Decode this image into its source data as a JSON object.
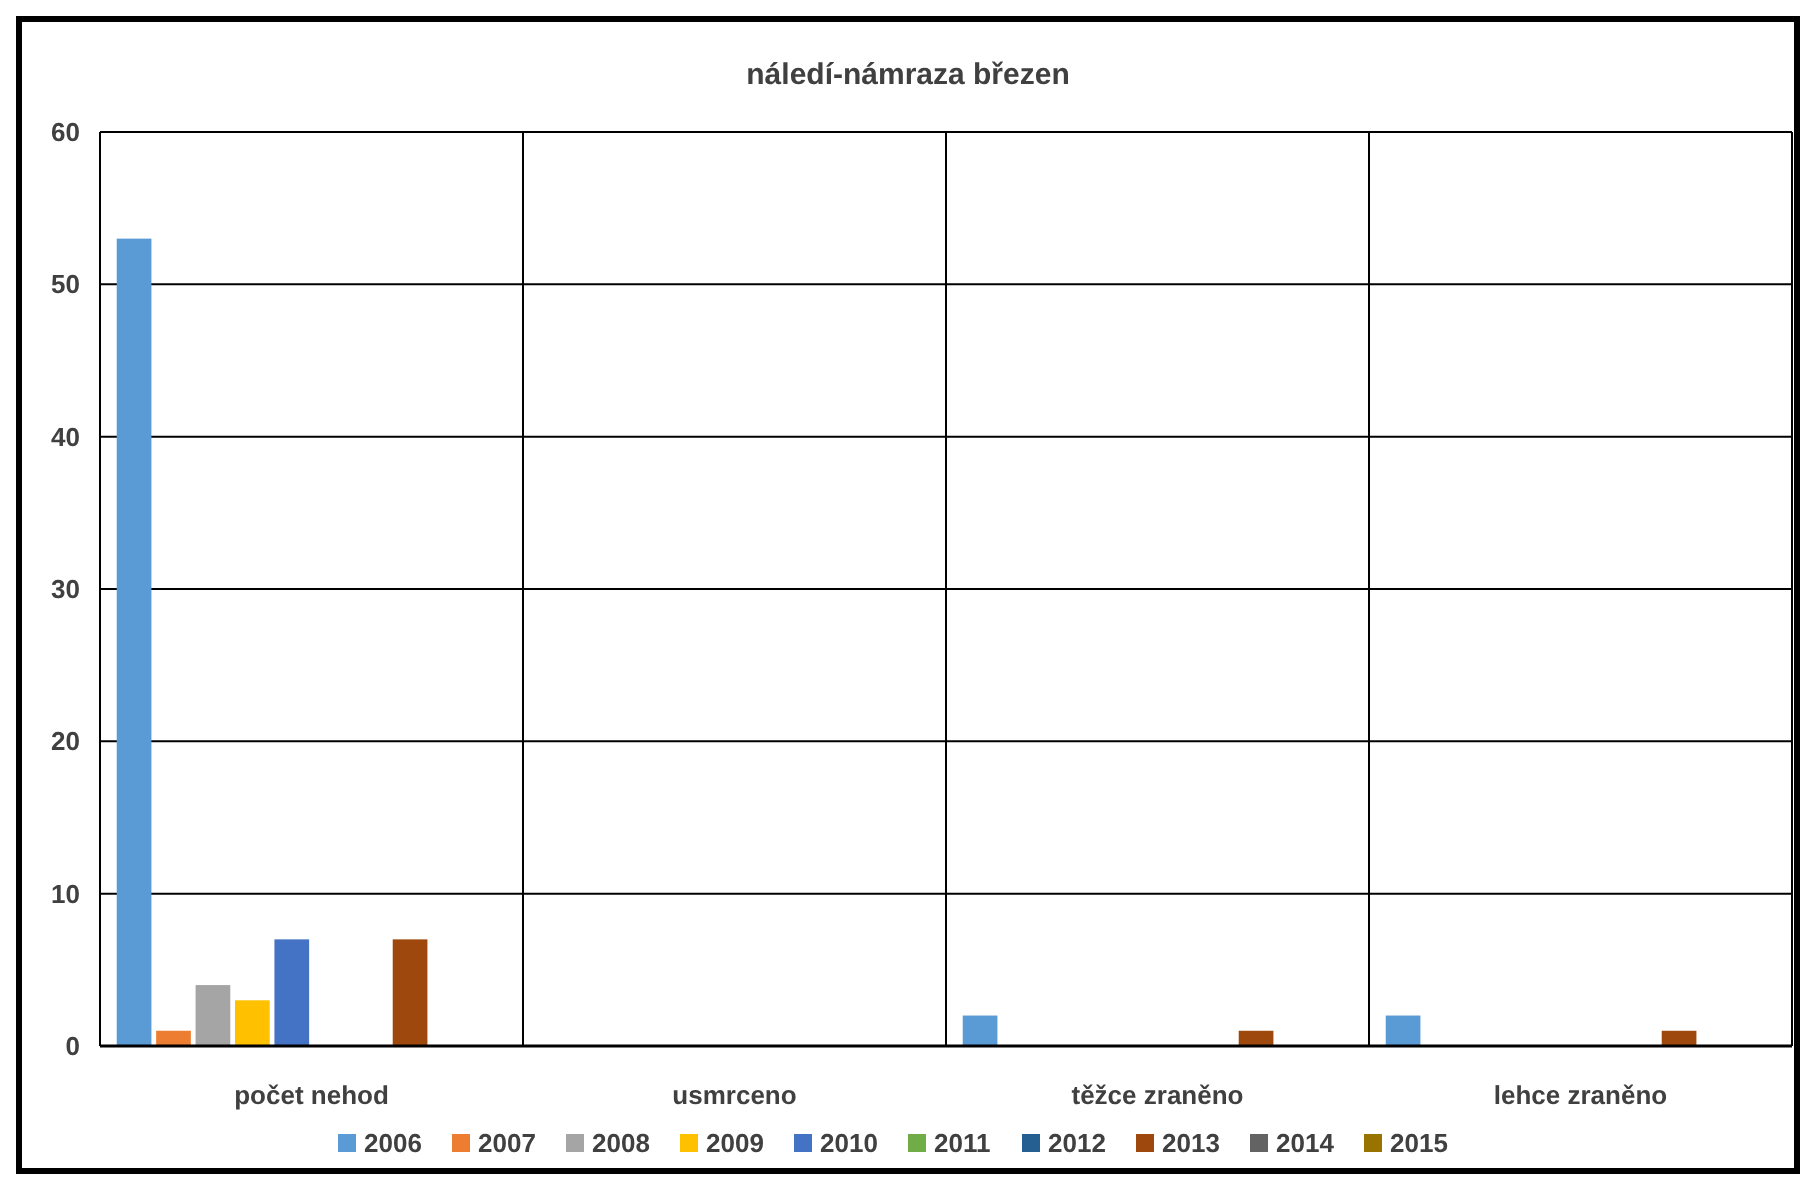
{
  "chart_data": {
    "type": "bar",
    "title": "náledí-námraza březen",
    "categories": [
      "počet nehod",
      "usmrceno",
      "těžce zraněno",
      "lehce zraněno"
    ],
    "series": [
      {
        "name": "2006",
        "color": "#5b9bd5",
        "values": [
          53,
          0,
          2,
          2
        ]
      },
      {
        "name": "2007",
        "color": "#ed7d31",
        "values": [
          1,
          0,
          0,
          0
        ]
      },
      {
        "name": "2008",
        "color": "#a5a5a5",
        "values": [
          4,
          0,
          0,
          0
        ]
      },
      {
        "name": "2009",
        "color": "#ffc000",
        "values": [
          3,
          0,
          0,
          0
        ]
      },
      {
        "name": "2010",
        "color": "#4472c4",
        "values": [
          7,
          0,
          0,
          0
        ]
      },
      {
        "name": "2011",
        "color": "#70ad47",
        "values": [
          0,
          0,
          0,
          0
        ]
      },
      {
        "name": "2012",
        "color": "#255e91",
        "values": [
          0,
          0,
          0,
          0
        ]
      },
      {
        "name": "2013",
        "color": "#9e480e",
        "values": [
          7,
          0,
          1,
          1
        ]
      },
      {
        "name": "2014",
        "color": "#636363",
        "values": [
          0,
          0,
          0,
          0
        ]
      },
      {
        "name": "2015",
        "color": "#997300",
        "values": [
          0,
          0,
          0,
          0
        ]
      }
    ],
    "ylim": [
      0,
      60
    ],
    "yticks": [
      0,
      10,
      20,
      30,
      40,
      50,
      60
    ],
    "grid": true,
    "legend": "bottom"
  }
}
